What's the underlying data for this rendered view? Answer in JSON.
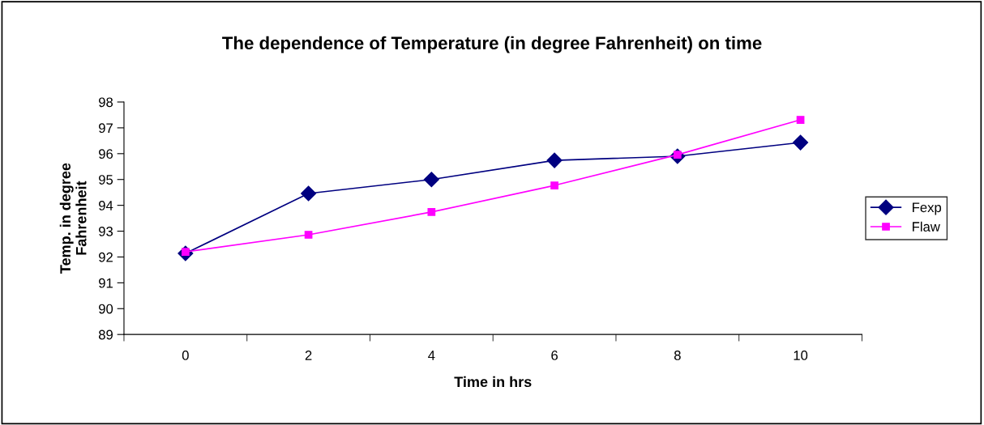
{
  "chart_data": {
    "type": "line",
    "title": "The dependence of Temperature (in degree Fahrenheit) on time",
    "xlabel": "Time in hrs",
    "ylabel": "Temp. in degree\nFahrenheit",
    "categories": [
      "0",
      "2",
      "4",
      "6",
      "8",
      "10"
    ],
    "series": [
      {
        "name": "Fexp",
        "color": "#000080",
        "marker": "diamond",
        "values": [
          92.14,
          94.46,
          95.0,
          95.74,
          95.9,
          96.43
        ]
      },
      {
        "name": "Flaw",
        "color": "#ff00ff",
        "marker": "square",
        "values": [
          92.2,
          92.86,
          93.74,
          94.77,
          95.96,
          97.31
        ]
      }
    ],
    "ylim": [
      89,
      98
    ],
    "yticks": [
      89,
      90,
      91,
      92,
      93,
      94,
      95,
      96,
      97,
      98
    ],
    "grid": false,
    "legend": "right",
    "line_style": "solid"
  }
}
